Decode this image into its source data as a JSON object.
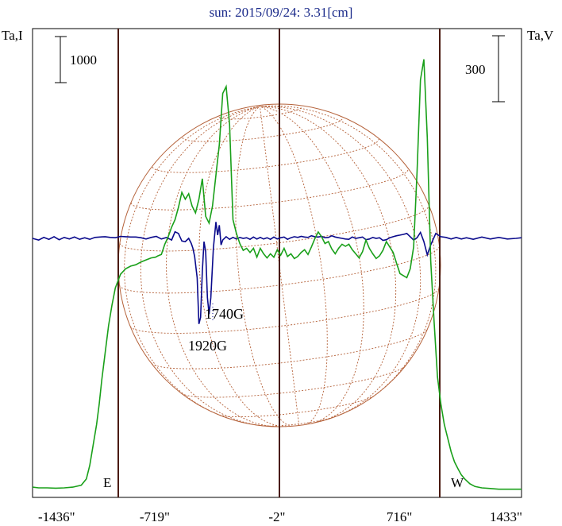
{
  "chart_data": {
    "type": "line",
    "title": "sun: 2015/09/24: 3.31[cm]",
    "ylabel_left": "Ta,I",
    "ylabel_right": "Ta,V",
    "scale_left": {
      "label": "1000"
    },
    "scale_right": {
      "label": "300"
    },
    "x_ticks": [
      "-1436\"",
      "-719\"",
      "-2\"",
      "716\"",
      "1433\""
    ],
    "x_tick_values": [
      -1436,
      -719,
      -2,
      716,
      1433
    ],
    "xlim": [
      -1436,
      1433
    ],
    "limb_labels": {
      "east": "E",
      "west": "W"
    },
    "annotations": [
      "1740G",
      "1920G"
    ],
    "colors": {
      "intensity": "#1aa01a",
      "polarization": "#0a0a8c",
      "disk": "#b5623a",
      "frame": "#000000",
      "vertical_markers": "#4a1a10",
      "title": "#1a2a8a"
    },
    "series": [
      {
        "name": "Ta,I",
        "color": "#1aa01a",
        "x": [
          -1436,
          -1400,
          -1350,
          -1300,
          -1250,
          -1200,
          -1150,
          -1120,
          -1100,
          -1080,
          -1060,
          -1045,
          -1030,
          -1010,
          -990,
          -970,
          -950,
          -920,
          -890,
          -860,
          -830,
          -800,
          -770,
          -740,
          -715,
          -700,
          -680,
          -660,
          -640,
          -620,
          -600,
          -580,
          -560,
          -540,
          -520,
          -500,
          -480,
          -460,
          -440,
          -420,
          -400,
          -380,
          -360,
          -340,
          -320,
          -300,
          -280,
          -260,
          -240,
          -220,
          -200,
          -180,
          -160,
          -140,
          -120,
          -100,
          -80,
          -60,
          -40,
          -20,
          0,
          20,
          40,
          60,
          80,
          100,
          120,
          140,
          160,
          180,
          200,
          220,
          240,
          260,
          280,
          300,
          320,
          340,
          360,
          380,
          400,
          420,
          440,
          460,
          480,
          500,
          520,
          540,
          560,
          580,
          600,
          620,
          640,
          660,
          680,
          700,
          720,
          740,
          760,
          780,
          800,
          820,
          840,
          860,
          880,
          900,
          920,
          940,
          960,
          980,
          1000,
          1020,
          1040,
          1060,
          1080,
          1100,
          1130,
          1160,
          1200,
          1250,
          1300,
          1350,
          1433
        ],
        "y": [
          80,
          70,
          70,
          65,
          70,
          80,
          110,
          200,
          400,
          700,
          1000,
          1300,
          1650,
          2050,
          2450,
          2750,
          3000,
          3200,
          3280,
          3320,
          3340,
          3380,
          3410,
          3440,
          3450,
          3470,
          3490,
          3640,
          3750,
          3890,
          4000,
          4180,
          4400,
          4300,
          4380,
          4200,
          4100,
          4300,
          4600,
          4050,
          3950,
          4200,
          4650,
          5100,
          5850,
          5950,
          5400,
          4000,
          3800,
          3650,
          3550,
          3580,
          3520,
          3580,
          3450,
          3580,
          3500,
          3440,
          3500,
          3450,
          3560,
          3480,
          3580,
          3460,
          3500,
          3430,
          3460,
          3520,
          3560,
          3490,
          3600,
          3720,
          3820,
          3750,
          3650,
          3680,
          3570,
          3500,
          3580,
          3640,
          3610,
          3640,
          3560,
          3500,
          3440,
          3530,
          3700,
          3580,
          3500,
          3430,
          3470,
          3550,
          3680,
          3600,
          3520,
          3360,
          3210,
          3180,
          3150,
          3280,
          3600,
          4700,
          6050,
          6350,
          5200,
          3400,
          2500,
          1700,
          1300,
          1000,
          800,
          600,
          450,
          350,
          260,
          200,
          130,
          90,
          70,
          60,
          50,
          50,
          50
        ],
        "ylim": [
          0,
          6800
        ]
      },
      {
        "name": "Ta,V",
        "color": "#0a0a8c",
        "x": [
          -1436,
          -1400,
          -1370,
          -1340,
          -1310,
          -1280,
          -1250,
          -1220,
          -1190,
          -1160,
          -1130,
          -1100,
          -1070,
          -1040,
          -1010,
          -980,
          -950,
          -920,
          -890,
          -860,
          -830,
          -800,
          -770,
          -740,
          -710,
          -680,
          -650,
          -620,
          -600,
          -580,
          -560,
          -540,
          -520,
          -505,
          -495,
          -485,
          -470,
          -460,
          -450,
          -440,
          -430,
          -420,
          -410,
          -400,
          -390,
          -375,
          -360,
          -350,
          -340,
          -330,
          -320,
          -300,
          -280,
          -260,
          -240,
          -220,
          -200,
          -180,
          -160,
          -140,
          -120,
          -100,
          -80,
          -60,
          -40,
          -20,
          0,
          20,
          40,
          60,
          80,
          100,
          120,
          140,
          160,
          180,
          200,
          220,
          240,
          260,
          280,
          300,
          320,
          340,
          360,
          380,
          400,
          420,
          440,
          460,
          480,
          500,
          520,
          540,
          560,
          580,
          600,
          620,
          640,
          660,
          680,
          700,
          720,
          740,
          760,
          780,
          800,
          820,
          840,
          860,
          880,
          900,
          930,
          960,
          990,
          1020,
          1050,
          1080,
          1110,
          1150,
          1200,
          1250,
          1300,
          1350,
          1400,
          1433
        ],
        "y": [
          0,
          -5,
          3,
          -3,
          5,
          -4,
          3,
          -2,
          4,
          -3,
          2,
          -3,
          3,
          4,
          5,
          3,
          2,
          6,
          5,
          4,
          4,
          2,
          -2,
          3,
          6,
          -2,
          3,
          -5,
          20,
          15,
          -8,
          -10,
          0,
          -15,
          -30,
          -55,
          -120,
          -260,
          -240,
          -100,
          -10,
          -40,
          -180,
          -230,
          -180,
          -30,
          50,
          10,
          40,
          -20,
          -5,
          5,
          -3,
          3,
          -2,
          3,
          0,
          2,
          -3,
          4,
          -2,
          3,
          -2,
          2,
          -3,
          4,
          -2,
          2,
          4,
          -3,
          2,
          5,
          3,
          6,
          4,
          3,
          8,
          5,
          4,
          6,
          2,
          3,
          8,
          4,
          2,
          0,
          -2,
          -3,
          4,
          0,
          2,
          4,
          -4,
          -2,
          3,
          0,
          2,
          -6,
          -4,
          2,
          5,
          8,
          10,
          12,
          15,
          5,
          -5,
          2,
          18,
          -10,
          -50,
          -20,
          15,
          5,
          3,
          -2,
          3,
          -2,
          2,
          -3,
          4,
          -2,
          3,
          -2,
          0,
          2
        ],
        "ylim": [
          -700,
          700
        ]
      }
    ]
  }
}
